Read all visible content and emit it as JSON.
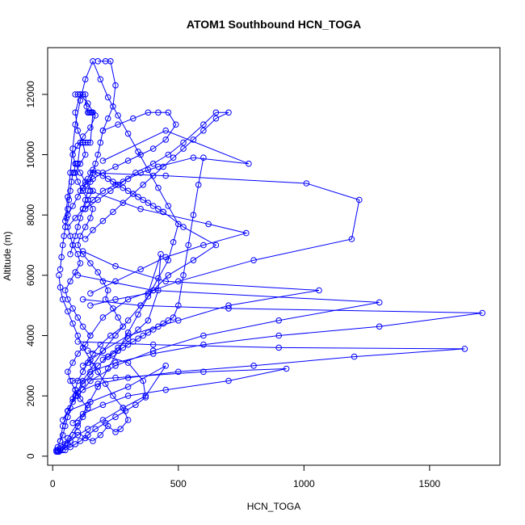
{
  "chart_data": {
    "type": "line",
    "title": "ATOM1 Southbound HCN_TOGA",
    "xlabel": "HCN_TOGA",
    "ylabel": "Altitude (m)",
    "xlim": [
      -20,
      1780
    ],
    "ylim": [
      -300,
      13550
    ],
    "xticks": [
      0,
      500,
      1000,
      1500
    ],
    "yticks": [
      0,
      2000,
      4000,
      6000,
      8000,
      10000,
      12000
    ],
    "grid": false,
    "legend": "none",
    "color": "#0000ff",
    "series": [
      {
        "x": [
          20,
          40,
          60,
          80,
          100,
          120,
          140,
          110,
          90,
          70,
          60,
          80,
          100,
          130,
          150,
          120,
          100,
          80,
          60,
          50,
          70,
          90,
          110,
          100,
          80,
          70,
          60,
          90,
          120,
          140,
          160,
          130,
          110,
          90,
          80,
          100,
          120,
          150,
          170,
          140,
          110,
          90,
          100,
          120,
          130,
          110,
          90,
          100,
          120,
          140,
          160,
          150,
          130,
          110,
          100,
          120,
          150,
          180,
          200,
          220,
          210,
          240,
          260,
          280,
          230,
          190,
          160,
          140,
          120,
          100,
          90,
          80,
          70,
          60,
          50,
          40,
          30,
          20,
          15,
          25
        ],
        "y": [
          150,
          200,
          400,
          700,
          1000,
          1300,
          1600,
          1900,
          2200,
          2500,
          2800,
          3100,
          3400,
          3700,
          4000,
          4300,
          4600,
          4900,
          5200,
          5500,
          5800,
          6100,
          6400,
          6700,
          7000,
          7300,
          7600,
          7900,
          8200,
          8500,
          8800,
          9100,
          9400,
          9700,
          10000,
          10300,
          10600,
          10900,
          11300,
          11700,
          12000,
          11400,
          10800,
          10400,
          10000,
          9700,
          9400,
          9100,
          8800,
          8500,
          8200,
          7900,
          7600,
          7300,
          7000,
          6700,
          6400,
          6100,
          5800,
          5500,
          5200,
          4900,
          4600,
          4300,
          4000,
          3700,
          3400,
          3100,
          2800,
          2500,
          2200,
          1900,
          1600,
          1300,
          1000,
          700,
          500,
          300,
          200,
          150
        ]
      },
      {
        "x": [
          30,
          60,
          100,
          140,
          180,
          220,
          260,
          300,
          340,
          380,
          420,
          460,
          480,
          500,
          460,
          420,
          380,
          340,
          300,
          260,
          220,
          190,
          160,
          130,
          110,
          90,
          80,
          70,
          60,
          50
        ],
        "y": [
          200,
          600,
          1100,
          1700,
          2300,
          2900,
          3500,
          4100,
          4700,
          5300,
          5900,
          6500,
          7100,
          7700,
          8300,
          8900,
          9500,
          10100,
          10700,
          11300,
          11900,
          12500,
          13100,
          12500,
          11800,
          11000,
          10200,
          9400,
          8600,
          7800
        ]
      },
      {
        "x": [
          130,
          180,
          230,
          280,
          330,
          400,
          460,
          520,
          600,
          650,
          700,
          650,
          600,
          560,
          520,
          480,
          440,
          400,
          360,
          320,
          280,
          240,
          200,
          160,
          130
        ],
        "y": [
          8200,
          8500,
          8800,
          9100,
          9400,
          9700,
          10000,
          10400,
          11000,
          11400,
          11400,
          11200,
          10800,
          10500,
          10200,
          9900,
          9600,
          9300,
          9000,
          8700,
          8400,
          8100,
          7800,
          7500,
          7200
        ]
      },
      {
        "x": [
          200,
          450,
          780,
          560,
          420,
          350,
          300,
          250,
          200,
          160,
          130
        ],
        "y": [
          9800,
          10800,
          9700,
          9900,
          9600,
          9400,
          9200,
          9000,
          8800,
          8500,
          8200
        ]
      },
      {
        "x": [
          150,
          450,
          1010,
          1220,
          1190,
          800,
          500,
          300,
          200,
          150
        ],
        "y": [
          9400,
          9300,
          9050,
          8500,
          7200,
          6500,
          5800,
          5200,
          4600,
          4000
        ]
      },
      {
        "x": [
          150,
          350,
          620,
          770,
          600,
          450,
          350,
          250,
          150
        ],
        "y": [
          8800,
          8200,
          7700,
          7400,
          7000,
          6600,
          6200,
          5800,
          5400
        ]
      },
      {
        "x": [
          120,
          250,
          450,
          1060,
          700,
          500,
          300,
          200,
          120
        ],
        "y": [
          6800,
          6300,
          5800,
          5500,
          5000,
          4500,
          4000,
          3500,
          3000
        ]
      },
      {
        "x": [
          100,
          400,
          1300,
          900,
          600,
          400,
          250,
          150,
          100
        ],
        "y": [
          6000,
          5500,
          5100,
          4500,
          4000,
          3500,
          3000,
          2500,
          2000
        ]
      },
      {
        "x": [
          120,
          350,
          700,
          1710,
          1300,
          900,
          600,
          400,
          250,
          150
        ],
        "y": [
          5200,
          5000,
          4900,
          4750,
          4300,
          4000,
          3700,
          3400,
          3100,
          2800
        ]
      },
      {
        "x": [
          100,
          400,
          900,
          1640,
          1200,
          800,
          500,
          300,
          180,
          120
        ],
        "y": [
          3800,
          3700,
          3600,
          3560,
          3300,
          3000,
          2800,
          2600,
          2400,
          2200
        ]
      },
      {
        "x": [
          80,
          250,
          600,
          930,
          700,
          450,
          300,
          200,
          120,
          80
        ],
        "y": [
          2500,
          2600,
          2800,
          2900,
          2500,
          2200,
          2000,
          1700,
          1400,
          1100
        ]
      },
      {
        "x": [
          60,
          150,
          300,
          450,
          370,
          280,
          200,
          140,
          100,
          70,
          50,
          40,
          30,
          20,
          15
        ],
        "y": [
          1500,
          1800,
          2300,
          3000,
          2000,
          1600,
          1200,
          900,
          700,
          500,
          400,
          300,
          250,
          200,
          150
        ]
      },
      {
        "x": [
          180,
          210,
          230,
          250,
          240,
          220,
          200,
          190,
          180,
          170,
          160,
          150,
          140,
          130,
          120,
          110,
          100,
          90,
          80,
          70
        ],
        "y": [
          13100,
          13100,
          13100,
          12300,
          11600,
          11200,
          10800,
          10400,
          10000,
          9700,
          9400,
          9100,
          8800,
          8500,
          8200,
          7900,
          7600,
          7300,
          7000,
          6700
        ]
      },
      {
        "x": [
          90,
          100,
          110,
          120,
          130,
          135,
          140,
          145,
          150,
          155,
          160,
          150,
          140,
          130,
          120,
          110,
          100,
          95,
          90,
          85,
          80,
          75,
          70,
          65,
          60,
          55,
          50,
          45,
          40,
          35,
          30
        ],
        "y": [
          12000,
          12000,
          12000,
          12000,
          12000,
          11600,
          11400,
          11400,
          11400,
          11400,
          11400,
          10400,
          10400,
          10400,
          10400,
          10400,
          9700,
          9700,
          9700,
          9400,
          9400,
          9100,
          8800,
          8500,
          8200,
          7900,
          7600,
          7300,
          7000,
          6600,
          6200
        ]
      },
      {
        "x": [
          200,
          260,
          320,
          380,
          420,
          460,
          490,
          450,
          400,
          350,
          300,
          250,
          200,
          160,
          130,
          110
        ],
        "y": [
          10800,
          11000,
          11200,
          11400,
          11400,
          11400,
          11000,
          10500,
          10200,
          10000,
          9800,
          9600,
          9400,
          9200,
          9000,
          8800
        ]
      },
      {
        "x": [
          150,
          250,
          380,
          430,
          420,
          380,
          340,
          300,
          260,
          220,
          180,
          150,
          120,
          100,
          80,
          60,
          40
        ],
        "y": [
          5000,
          5200,
          5400,
          6700,
          5500,
          4500,
          4200,
          3900,
          3600,
          3300,
          3000,
          2700,
          2400,
          2100,
          1800,
          1500,
          1200
        ]
      },
      {
        "x": [
          140,
          220,
          300,
          360,
          370,
          330,
          290,
          250,
          210,
          170,
          140,
          110,
          90,
          70,
          50
        ],
        "y": [
          3500,
          3300,
          3100,
          2500,
          1950,
          1700,
          1500,
          1300,
          1100,
          900,
          700,
          500,
          400,
          300,
          200
        ]
      },
      {
        "x": [
          100,
          130,
          160,
          190,
          220,
          250,
          270,
          300,
          280,
          240,
          210,
          180,
          150,
          120,
          100,
          80,
          60,
          40,
          30,
          25
        ],
        "y": [
          800,
          600,
          500,
          700,
          1000,
          800,
          900,
          1200,
          1600,
          2000,
          2400,
          2800,
          3200,
          3600,
          4000,
          4400,
          4800,
          5200,
          5600,
          6000
        ]
      },
      {
        "x": [
          60,
          80,
          100,
          120,
          140,
          160,
          180,
          200,
          220,
          240,
          260,
          280,
          300,
          320,
          340,
          360,
          380,
          400,
          420,
          440
        ],
        "y": [
          8000,
          8300,
          8600,
          8900,
          9200,
          9500,
          9400,
          9300,
          9200,
          9100,
          9000,
          8900,
          8800,
          8700,
          8600,
          8500,
          8400,
          8300,
          8200,
          8100
        ]
      },
      {
        "x": [
          440,
          520,
          650,
          560,
          460,
          400,
          350,
          300,
          250,
          200,
          160,
          120,
          90,
          60,
          40,
          30
        ],
        "y": [
          8100,
          7600,
          7000,
          6500,
          6000,
          5500,
          5000,
          4500,
          4000,
          3500,
          3000,
          2500,
          2000,
          1500,
          1000,
          500
        ]
      },
      {
        "x": [
          600,
          580,
          560,
          540,
          520,
          500,
          480,
          460,
          440,
          420,
          400,
          380,
          360,
          340,
          320,
          300,
          280,
          260,
          240,
          220,
          200
        ],
        "y": [
          9900,
          9000,
          8000,
          7000,
          6000,
          5000,
          4600,
          4500,
          4400,
          4300,
          4200,
          4100,
          4000,
          3900,
          3800,
          3700,
          3600,
          3500,
          3400,
          3300,
          3200
        ]
      }
    ]
  }
}
